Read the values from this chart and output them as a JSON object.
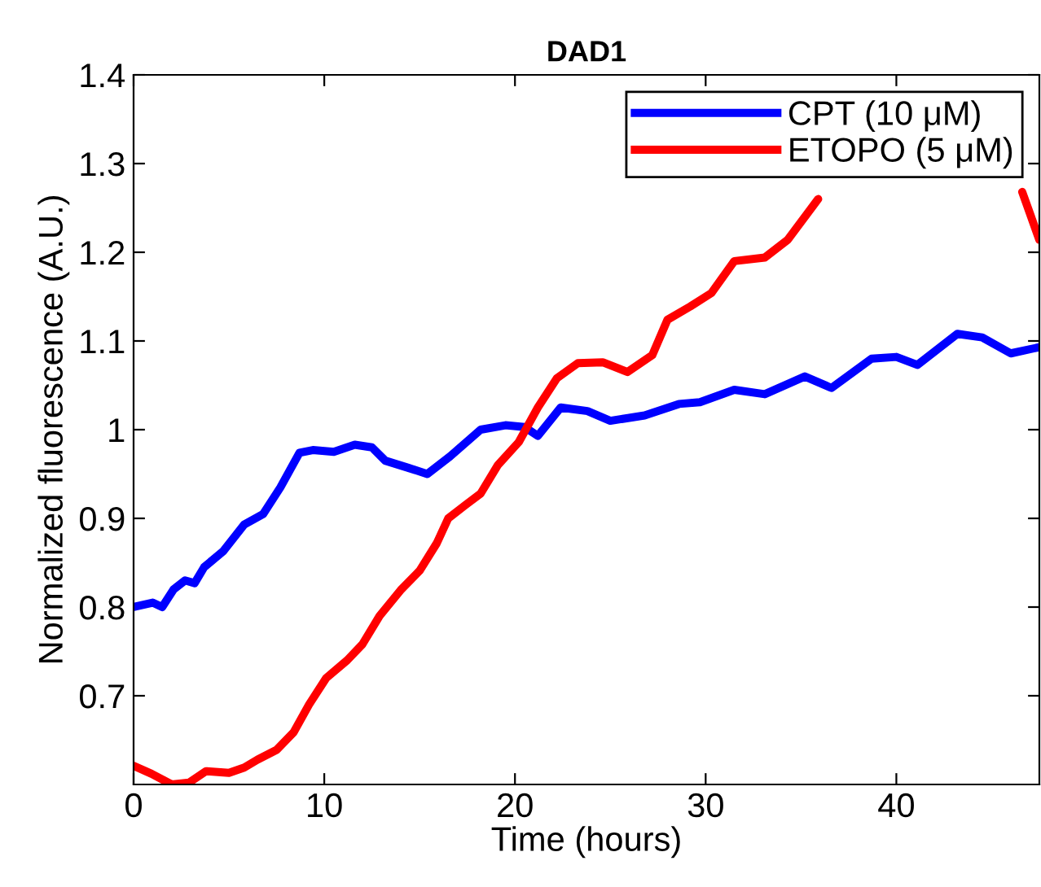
{
  "chart_data": {
    "type": "line",
    "title": "DAD1",
    "xlabel": "Time (hours)",
    "ylabel": "Normalized fluorescence (A.U.)",
    "xlim": [
      0,
      47.5
    ],
    "ylim": [
      0.6,
      1.4
    ],
    "xticks": [
      0,
      10,
      20,
      30,
      40
    ],
    "yticks": [
      0.7,
      0.8,
      0.9,
      1,
      1.1,
      1.2,
      1.3,
      1.4
    ],
    "grid": false,
    "legend": "top right",
    "marker": "none",
    "line_style": "solid",
    "series": [
      {
        "name": "CPT (10 μM)",
        "color": "#0000ff",
        "x": [
          0,
          1,
          1.5,
          2.1,
          2.7,
          3.2,
          3.7,
          4.7,
          5.8,
          6.8,
          7.7,
          8.7,
          9.4,
          10.5,
          11.6,
          12.5,
          13.2,
          14.4,
          15.4,
          16.6,
          18.2,
          19.5,
          20.5,
          21.2,
          22.4,
          23.8,
          25.0,
          26.8,
          28.6,
          29.7,
          31.5,
          33.1,
          35.2,
          36.6,
          38.7,
          40,
          41.1,
          43.2,
          44.5,
          46,
          47.5
        ],
        "values": [
          0.8,
          0.805,
          0.8,
          0.82,
          0.83,
          0.827,
          0.845,
          0.863,
          0.893,
          0.905,
          0.935,
          0.974,
          0.977,
          0.975,
          0.983,
          0.98,
          0.965,
          0.957,
          0.95,
          0.97,
          1.0,
          1.005,
          1.003,
          0.993,
          1.025,
          1.021,
          1.01,
          1.016,
          1.029,
          1.031,
          1.045,
          1.04,
          1.06,
          1.047,
          1.08,
          1.082,
          1.073,
          1.108,
          1.104,
          1.086,
          1.093
        ]
      },
      {
        "name": "ETOPO (5 μM)",
        "color": "#ff0000",
        "x": [
          0,
          0.94,
          2.0,
          2.9,
          3.8,
          5.0,
          5.8,
          6.5,
          7.5,
          8.4,
          9.2,
          10.1,
          11.2,
          12.0,
          12.9,
          14.0,
          15.0,
          15.9,
          16.5,
          17.4,
          18.2,
          19.1,
          20.2,
          21.2,
          22.2,
          23.3,
          24.6,
          25.9,
          27.2,
          28.0,
          29.2,
          30.3,
          31.5,
          33.1,
          34.3,
          35.9,
          41,
          46.6,
          47.5
        ],
        "values": [
          0.621,
          0.612,
          0.6,
          0.602,
          0.615,
          0.613,
          0.619,
          0.628,
          0.639,
          0.659,
          0.69,
          0.72,
          0.74,
          0.758,
          0.79,
          0.819,
          0.841,
          0.872,
          0.9,
          0.915,
          0.928,
          0.96,
          0.986,
          1.025,
          1.058,
          1.075,
          1.076,
          1.065,
          1.084,
          1.124,
          1.139,
          1.154,
          1.19,
          1.194,
          1.214,
          1.26,
          null,
          1.268,
          1.214
        ]
      }
    ]
  }
}
